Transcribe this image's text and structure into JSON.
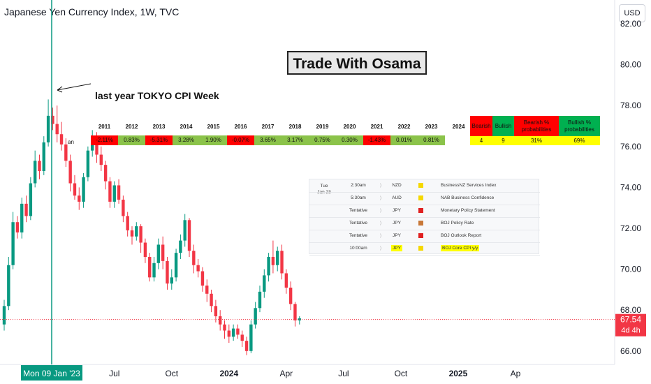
{
  "header": {
    "title": "Japanese Yen Currency Index, 1W, TVC",
    "currency_button": "USD"
  },
  "annotations": {
    "box_text": "Trade With Osama",
    "cpi_note": "last year TOKYO CPI Week",
    "small_label": "an"
  },
  "price_badge": {
    "price": "67.54",
    "countdown": "4d 4h",
    "color": "#f23645"
  },
  "crosshair_label": "Mon 09 Jan '23",
  "colors": {
    "up": "#089981",
    "down": "#f23645",
    "price_line": "#f23645",
    "crosshair": "#089981"
  },
  "year_table": {
    "years": [
      "2011",
      "2012",
      "2013",
      "2014",
      "2015",
      "2016",
      "2017",
      "2018",
      "2019",
      "2020",
      "2021",
      "2022",
      "2023",
      "2024"
    ],
    "values": [
      "-2.11%",
      "0.83%",
      "-5.31%",
      "3.28%",
      "1.90%",
      "-0.07%",
      "3.65%",
      "3.17%",
      "0.75%",
      "0.30%",
      "-1.43%",
      "0.01%",
      "0.81%",
      ""
    ],
    "colors": [
      "#ff0000",
      "#8bc34a",
      "#ff0000",
      "#8bc34a",
      "#8bc34a",
      "#ff0000",
      "#8bc34a",
      "#8bc34a",
      "#8bc34a",
      "#8bc34a",
      "#ff0000",
      "#8bc34a",
      "#8bc34a",
      "#ffffff"
    ]
  },
  "stats": {
    "headers": [
      "Bearish",
      "Bullish",
      "Bearish % probabilities",
      "Bullish % probabilities"
    ],
    "values": [
      "4",
      "9",
      "31%",
      "69%"
    ],
    "header_colors": [
      "#ff0000",
      "#00b050",
      "#ff0000",
      "#00b050"
    ]
  },
  "calendar": {
    "day": "Tue",
    "date": "Jan 23",
    "rows": [
      {
        "time": "2:30am",
        "currency": "NZD",
        "importance": "#f5d800",
        "event": "BusinessNZ Services Index",
        "highlight": false
      },
      {
        "time": "5:30am",
        "currency": "AUD",
        "importance": "#f5d800",
        "event": "NAB Business Confidence",
        "highlight": false
      },
      {
        "time": "Tentative",
        "currency": "JPY",
        "importance": "#e02020",
        "event": "Monetary Policy Statement",
        "highlight": false
      },
      {
        "time": "Tentative",
        "currency": "JPY",
        "importance": "#c87838",
        "event": "BOJ Policy Rate",
        "highlight": false
      },
      {
        "time": "Tentative",
        "currency": "JPY",
        "importance": "#e02020",
        "event": "BOJ Outlook Report",
        "highlight": false
      },
      {
        "time": "10:00am",
        "currency": "JPY",
        "importance": "#f5d800",
        "event": "BOJ Core CPI y/y",
        "highlight": true
      }
    ]
  },
  "chart_data": {
    "type": "candlestick",
    "title": "Japanese Yen Currency Index, 1W, TVC",
    "y_ticks": [
      "82.00",
      "80.00",
      "78.00",
      "76.00",
      "74.00",
      "72.00",
      "70.00",
      "68.00",
      "66.00"
    ],
    "y_tick_values": [
      82,
      80,
      78,
      76,
      74,
      72,
      70,
      68,
      66
    ],
    "ylim": [
      65.8,
      82.5
    ],
    "x_ticks": [
      "Apr",
      "Jul",
      "Oct",
      "2024",
      "Apr",
      "Jul",
      "Oct",
      "2025",
      "Ap"
    ],
    "bold_x_ticks": [
      "2024",
      "2025"
    ],
    "x_tick_weeks": [
      12,
      25,
      38,
      51,
      64,
      77,
      90,
      103,
      116
    ],
    "crosshair_week": 0,
    "last_price": 67.54,
    "candles": [
      [
        67.3,
        68.2,
        67.0,
        68.5
      ],
      [
        68.2,
        70.2,
        68.0,
        70.6
      ],
      [
        70.2,
        72.3,
        70.0,
        72.8
      ],
      [
        72.3,
        71.8,
        71.5,
        72.6
      ],
      [
        71.8,
        73.2,
        71.5,
        73.5
      ],
      [
        73.2,
        72.6,
        72.3,
        73.6
      ],
      [
        72.6,
        74.2,
        72.4,
        74.5
      ],
      [
        74.2,
        75.3,
        74.0,
        75.8
      ],
      [
        75.3,
        74.8,
        74.4,
        75.6
      ],
      [
        74.8,
        76.2,
        74.6,
        76.5
      ],
      [
        76.2,
        77.5,
        76.0,
        78.3
      ],
      [
        77.5,
        77.1,
        76.8,
        77.9
      ],
      [
        77.1,
        76.6,
        76.2,
        78.0
      ],
      [
        76.6,
        76.1,
        75.8,
        77.2
      ],
      [
        76.1,
        75.3,
        75.0,
        76.4
      ],
      [
        75.3,
        74.2,
        73.8,
        75.6
      ],
      [
        74.2,
        73.6,
        73.4,
        74.6
      ],
      [
        73.6,
        73.3,
        72.9,
        74.0
      ],
      [
        73.3,
        74.5,
        73.0,
        74.7
      ],
      [
        74.5,
        75.8,
        74.3,
        76.0
      ],
      [
        75.8,
        76.4,
        75.5,
        76.8
      ],
      [
        76.4,
        75.6,
        75.2,
        76.7
      ],
      [
        75.6,
        75.1,
        74.8,
        76.0
      ],
      [
        75.1,
        74.3,
        73.9,
        75.3
      ],
      [
        74.3,
        73.3,
        73.0,
        74.5
      ],
      [
        73.3,
        74.1,
        73.0,
        74.3
      ],
      [
        74.1,
        73.4,
        73.2,
        74.4
      ],
      [
        73.4,
        72.6,
        72.3,
        73.6
      ],
      [
        72.6,
        71.9,
        71.6,
        72.8
      ],
      [
        71.9,
        71.6,
        71.2,
        72.1
      ],
      [
        71.6,
        72.1,
        71.4,
        72.3
      ],
      [
        72.1,
        71.3,
        70.8,
        72.2
      ],
      [
        71.3,
        70.6,
        70.3,
        71.5
      ],
      [
        70.6,
        69.6,
        69.4,
        70.8
      ],
      [
        69.6,
        70.3,
        69.4,
        70.6
      ],
      [
        70.3,
        71.2,
        70.0,
        71.5
      ],
      [
        71.2,
        70.4,
        70.0,
        71.6
      ],
      [
        70.4,
        69.3,
        69.0,
        70.6
      ],
      [
        69.3,
        69.6,
        69.0,
        70.0
      ],
      [
        69.6,
        70.8,
        69.4,
        71.0
      ],
      [
        70.8,
        71.4,
        70.5,
        71.7
      ],
      [
        71.4,
        72.4,
        71.1,
        72.7
      ],
      [
        72.4,
        70.9,
        70.6,
        72.5
      ],
      [
        70.9,
        70.2,
        69.8,
        71.2
      ],
      [
        70.2,
        69.9,
        69.6,
        70.5
      ],
      [
        69.9,
        69.2,
        68.9,
        70.1
      ],
      [
        69.2,
        68.8,
        68.4,
        69.5
      ],
      [
        68.8,
        68.2,
        67.9,
        69.0
      ],
      [
        68.2,
        67.7,
        67.4,
        68.5
      ],
      [
        67.7,
        67.3,
        67.0,
        68.0
      ],
      [
        67.3,
        67.0,
        66.6,
        67.5
      ],
      [
        67.0,
        66.7,
        66.4,
        67.3
      ],
      [
        66.7,
        67.1,
        66.5,
        67.3
      ],
      [
        67.1,
        66.8,
        66.6,
        67.3
      ],
      [
        66.8,
        66.5,
        66.2,
        67.0
      ],
      [
        66.5,
        66.0,
        65.8,
        66.7
      ],
      [
        66.0,
        67.3,
        65.9,
        67.5
      ],
      [
        67.3,
        68.1,
        67.1,
        68.4
      ],
      [
        68.1,
        68.9,
        67.9,
        69.2
      ],
      [
        68.9,
        69.7,
        68.6,
        70.0
      ],
      [
        69.7,
        70.6,
        69.4,
        70.8
      ],
      [
        70.6,
        70.2,
        69.8,
        71.4
      ],
      [
        70.2,
        70.9,
        69.9,
        71.1
      ],
      [
        70.9,
        69.8,
        69.5,
        71.2
      ],
      [
        69.8,
        69.1,
        68.8,
        70.0
      ],
      [
        69.1,
        68.3,
        68.0,
        69.4
      ],
      [
        68.3,
        67.5,
        67.2,
        68.4
      ],
      [
        67.5,
        67.6,
        67.3,
        67.7
      ]
    ]
  }
}
